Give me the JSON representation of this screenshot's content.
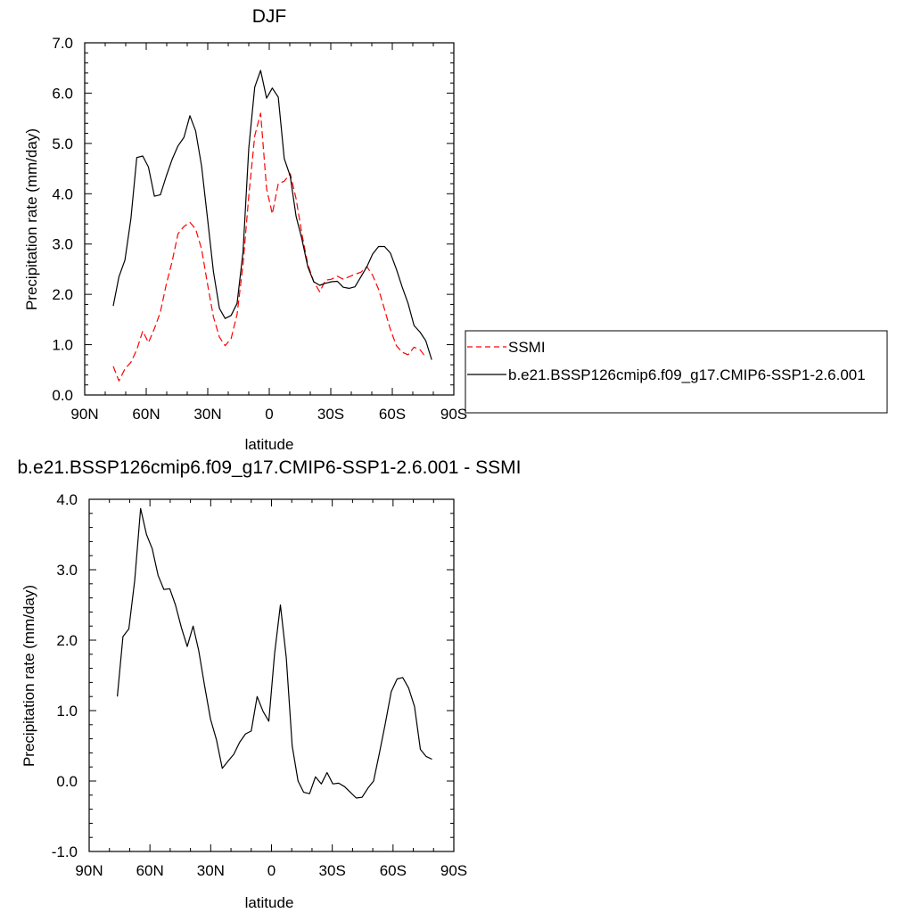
{
  "chart_data": [
    {
      "type": "line",
      "title": "DJF",
      "xlabel": "latitude",
      "ylabel": "Precipitation rate (mm/day)",
      "xlim": [
        90,
        -90
      ],
      "ylim": [
        0,
        7
      ],
      "grid": false,
      "xticks": [
        90,
        60,
        30,
        0,
        -30,
        -60,
        -90
      ],
      "xtick_labels": [
        "90N",
        "60N",
        "30N",
        "0",
        "30S",
        "60S",
        "90S"
      ],
      "yticks": [
        0,
        1,
        2,
        3,
        4,
        5,
        6,
        7
      ],
      "ytick_labels": [
        "0.0",
        "1.0",
        "2.0",
        "3.0",
        "4.0",
        "5.0",
        "6.0",
        "7.0"
      ],
      "legend_position": "right",
      "series": [
        {
          "name": "SSMI",
          "color": "#ff0000",
          "dash": "dashed",
          "points": [
            [
              76.1,
              0.57
            ],
            [
              73.3,
              0.28
            ],
            [
              70.4,
              0.52
            ],
            [
              67.5,
              0.65
            ],
            [
              64.6,
              0.9
            ],
            [
              61.7,
              1.27
            ],
            [
              58.9,
              1.04
            ],
            [
              56,
              1.32
            ],
            [
              53.1,
              1.65
            ],
            [
              50.2,
              2.2
            ],
            [
              47.4,
              2.65
            ],
            [
              44.5,
              3.2
            ],
            [
              41.6,
              3.35
            ],
            [
              38.7,
              3.43
            ],
            [
              35.9,
              3.3
            ],
            [
              33,
              2.9
            ],
            [
              30.1,
              2.2
            ],
            [
              27.2,
              1.55
            ],
            [
              24.3,
              1.15
            ],
            [
              21.5,
              0.98
            ],
            [
              18.6,
              1.12
            ],
            [
              15.7,
              1.6
            ],
            [
              12.8,
              2.6
            ],
            [
              10,
              3.95
            ],
            [
              7.1,
              5.15
            ],
            [
              4.2,
              5.6
            ],
            [
              1.3,
              4.1
            ],
            [
              -1.5,
              3.6
            ],
            [
              -4.4,
              4.2
            ],
            [
              -7.3,
              4.25
            ],
            [
              -10.2,
              4.4
            ],
            [
              -13.1,
              3.9
            ],
            [
              -15.9,
              3.2
            ],
            [
              -18.8,
              2.6
            ],
            [
              -21.7,
              2.25
            ],
            [
              -24.6,
              2.05
            ],
            [
              -27.4,
              2.28
            ],
            [
              -30.3,
              2.3
            ],
            [
              -33.2,
              2.36
            ],
            [
              -36.1,
              2.3
            ],
            [
              -38.9,
              2.35
            ],
            [
              -41.8,
              2.4
            ],
            [
              -44.7,
              2.44
            ],
            [
              -47.6,
              2.55
            ],
            [
              -50.4,
              2.38
            ],
            [
              -53.3,
              2.1
            ],
            [
              -56.2,
              1.7
            ],
            [
              -59.1,
              1.3
            ],
            [
              -62,
              0.98
            ],
            [
              -64.8,
              0.85
            ],
            [
              -67.7,
              0.8
            ],
            [
              -70.6,
              0.95
            ],
            [
              -73.5,
              0.9
            ],
            [
              -76.3,
              0.75
            ]
          ]
        },
        {
          "name": "b.e21.BSSP126cmip6.f09_g17.CMIP6-SSP1-2.6.001",
          "color": "#000000",
          "dash": "solid",
          "points": [
            [
              76.1,
              1.77
            ],
            [
              73.3,
              2.35
            ],
            [
              70.4,
              2.68
            ],
            [
              67.5,
              3.5
            ],
            [
              64.6,
              4.72
            ],
            [
              61.7,
              4.75
            ],
            [
              58.9,
              4.53
            ],
            [
              56,
              3.95
            ],
            [
              53.1,
              3.98
            ],
            [
              50.2,
              4.35
            ],
            [
              47.4,
              4.68
            ],
            [
              44.5,
              4.95
            ],
            [
              41.6,
              5.12
            ],
            [
              38.7,
              5.55
            ],
            [
              35.9,
              5.25
            ],
            [
              33,
              4.55
            ],
            [
              30.1,
              3.5
            ],
            [
              27.2,
              2.45
            ],
            [
              24.3,
              1.72
            ],
            [
              21.5,
              1.52
            ],
            [
              18.6,
              1.58
            ],
            [
              15.7,
              1.82
            ],
            [
              12.8,
              2.85
            ],
            [
              10,
              4.9
            ],
            [
              7.1,
              6.12
            ],
            [
              4.2,
              6.45
            ],
            [
              1.3,
              5.9
            ],
            [
              -1.5,
              6.1
            ],
            [
              -4.4,
              5.92
            ],
            [
              -7.3,
              4.7
            ],
            [
              -10.2,
              4.35
            ],
            [
              -13.1,
              3.55
            ],
            [
              -15.9,
              3.1
            ],
            [
              -18.8,
              2.55
            ],
            [
              -21.7,
              2.25
            ],
            [
              -24.6,
              2.18
            ],
            [
              -27.4,
              2.22
            ],
            [
              -30.3,
              2.25
            ],
            [
              -33.2,
              2.26
            ],
            [
              -36.1,
              2.14
            ],
            [
              -38.9,
              2.12
            ],
            [
              -41.8,
              2.15
            ],
            [
              -44.7,
              2.35
            ],
            [
              -47.6,
              2.55
            ],
            [
              -50.4,
              2.8
            ],
            [
              -53.3,
              2.95
            ],
            [
              -56.2,
              2.95
            ],
            [
              -59.1,
              2.82
            ],
            [
              -62,
              2.5
            ],
            [
              -64.8,
              2.15
            ],
            [
              -67.7,
              1.82
            ],
            [
              -70.6,
              1.38
            ],
            [
              -73.5,
              1.25
            ],
            [
              -76.3,
              1.08
            ],
            [
              -79.2,
              0.7
            ]
          ]
        }
      ]
    },
    {
      "type": "line",
      "title": "b.e21.BSSP126cmip6.f09_g17.CMIP6-SSP1-2.6.001 - SSMI",
      "xlabel": "latitude",
      "ylabel": "Precipitation rate (mm/day)",
      "xlim": [
        90,
        -90
      ],
      "ylim": [
        -1,
        4
      ],
      "grid": false,
      "xticks": [
        90,
        60,
        30,
        0,
        -30,
        -60,
        -90
      ],
      "xtick_labels": [
        "90N",
        "60N",
        "30N",
        "0",
        "30S",
        "60S",
        "90S"
      ],
      "yticks": [
        -1,
        0,
        1,
        2,
        3,
        4
      ],
      "ytick_labels": [
        "-1.0",
        "0.0",
        "1.0",
        "2.0",
        "3.0",
        "4.0"
      ],
      "series": [
        {
          "color": "#000000",
          "dash": "solid",
          "points": [
            [
              76.1,
              1.2
            ],
            [
              73.3,
              2.05
            ],
            [
              70.4,
              2.16
            ],
            [
              67.5,
              2.85
            ],
            [
              64.6,
              3.87
            ],
            [
              61.7,
              3.5
            ],
            [
              58.9,
              3.3
            ],
            [
              56,
              2.92
            ],
            [
              53.1,
              2.72
            ],
            [
              50.2,
              2.73
            ],
            [
              47.4,
              2.5
            ],
            [
              44.5,
              2.18
            ],
            [
              41.6,
              1.91
            ],
            [
              38.7,
              2.2
            ],
            [
              35.9,
              1.85
            ],
            [
              33,
              1.35
            ],
            [
              30.1,
              0.88
            ],
            [
              27.2,
              0.59
            ],
            [
              24.3,
              0.18
            ],
            [
              21.5,
              0.28
            ],
            [
              18.6,
              0.38
            ],
            [
              15.7,
              0.55
            ],
            [
              12.8,
              0.67
            ],
            [
              10,
              0.71
            ],
            [
              7.1,
              1.2
            ],
            [
              4.2,
              0.99
            ],
            [
              1.3,
              0.85
            ],
            [
              -1.5,
              1.8
            ],
            [
              -4.4,
              2.5
            ],
            [
              -7.3,
              1.75
            ],
            [
              -10.2,
              0.5
            ],
            [
              -13.1,
              0.0
            ],
            [
              -15.9,
              -0.16
            ],
            [
              -18.8,
              -0.18
            ],
            [
              -21.7,
              0.06
            ],
            [
              -24.6,
              -0.04
            ],
            [
              -27.4,
              0.12
            ],
            [
              -30.3,
              -0.04
            ],
            [
              -33.2,
              -0.03
            ],
            [
              -36.1,
              -0.08
            ],
            [
              -38.9,
              -0.16
            ],
            [
              -41.8,
              -0.24
            ],
            [
              -44.7,
              -0.23
            ],
            [
              -47.6,
              -0.1
            ],
            [
              -50.4,
              0.0
            ],
            [
              -53.3,
              0.4
            ],
            [
              -56.2,
              0.82
            ],
            [
              -59.1,
              1.27
            ],
            [
              -62,
              1.45
            ],
            [
              -64.8,
              1.47
            ],
            [
              -67.7,
              1.32
            ],
            [
              -70.6,
              1.06
            ],
            [
              -73.5,
              0.45
            ],
            [
              -76.3,
              0.35
            ],
            [
              -79.2,
              0.31
            ]
          ]
        }
      ]
    }
  ]
}
